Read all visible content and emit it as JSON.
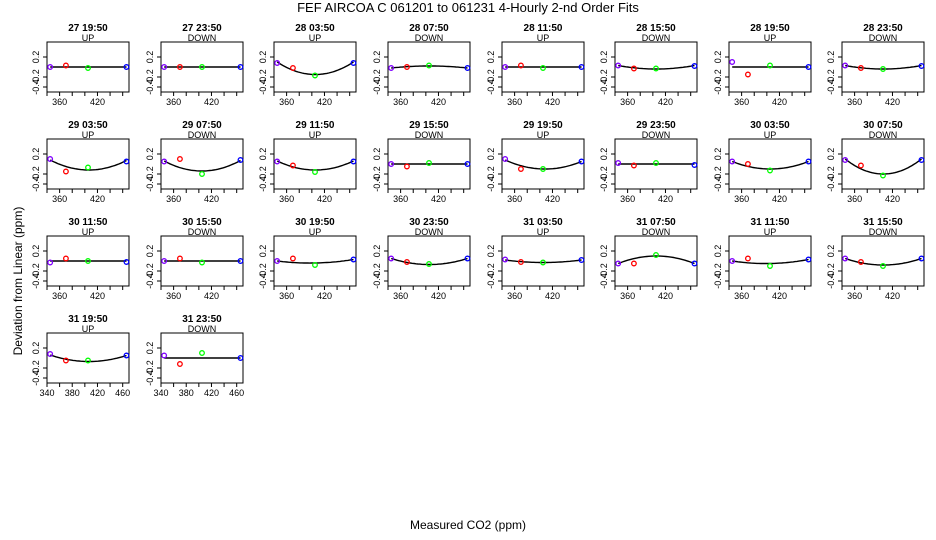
{
  "title": "FEF   AIRCOA C   061201 to 061231   4-Hourly 2-nd Order Fits",
  "xlabel": "Measured CO2 (ppm)",
  "ylabel": "Deviation from Linear (ppm)",
  "colors": {
    "standard_1": "#8000ff",
    "standard_2": "#ff0000",
    "standard_3": "#00ff00",
    "standard_4": "#0000ff",
    "curve": "#000000"
  },
  "chart_data": {
    "type": "scatter",
    "xlim": [
      340,
      470
    ],
    "ylim": [
      -0.5,
      0.5
    ],
    "x_ticks_labeled": [
      360,
      420
    ],
    "x_ticks_labeled_bottom_panels": [
      340,
      380,
      420,
      460
    ],
    "y_ticks": [
      -0.4,
      -0.2,
      0.2
    ],
    "standards_x": [
      345,
      370,
      405,
      466
    ],
    "panels": [
      {
        "label": "27 19:50",
        "direction": "UP",
        "points": [
          0.0,
          0.03,
          -0.02,
          0.0
        ],
        "fit": [
          0.0,
          0.0,
          0.0
        ]
      },
      {
        "label": "27 23:50",
        "direction": "DOWN",
        "points": [
          0.0,
          0.0,
          0.0,
          0.0
        ],
        "fit": [
          0.0,
          0.0,
          0.0
        ]
      },
      {
        "label": "28 03:50",
        "direction": "UP",
        "points": [
          0.08,
          -0.02,
          -0.17,
          0.08
        ],
        "fit": [
          0.1,
          -0.15,
          0.1
        ]
      },
      {
        "label": "28 07:50",
        "direction": "DOWN",
        "points": [
          -0.02,
          0.0,
          0.03,
          -0.02
        ],
        "fit": [
          -0.02,
          0.02,
          -0.02
        ]
      },
      {
        "label": "28 11:50",
        "direction": "UP",
        "points": [
          0.0,
          0.03,
          -0.02,
          0.0
        ],
        "fit": [
          0.0,
          0.0,
          0.0
        ]
      },
      {
        "label": "28 15:50",
        "direction": "DOWN",
        "points": [
          0.03,
          -0.03,
          -0.03,
          0.02
        ],
        "fit": [
          0.03,
          -0.04,
          0.03
        ]
      },
      {
        "label": "28 19:50",
        "direction": "UP",
        "points": [
          0.1,
          -0.15,
          0.03,
          0.0
        ],
        "fit": [
          0.0,
          0.0,
          0.0
        ]
      },
      {
        "label": "28 23:50",
        "direction": "DOWN",
        "points": [
          0.03,
          -0.02,
          -0.04,
          0.02
        ],
        "fit": [
          0.03,
          -0.04,
          0.03
        ]
      },
      {
        "label": "29 03:50",
        "direction": "UP",
        "points": [
          0.1,
          -0.15,
          -0.07,
          0.05
        ],
        "fit": [
          0.08,
          -0.12,
          0.07
        ]
      },
      {
        "label": "29 07:50",
        "direction": "DOWN",
        "points": [
          0.05,
          0.1,
          -0.2,
          0.08
        ],
        "fit": [
          0.06,
          -0.14,
          0.07
        ]
      },
      {
        "label": "29 11:50",
        "direction": "UP",
        "points": [
          0.05,
          -0.03,
          -0.16,
          0.05
        ],
        "fit": [
          0.06,
          -0.12,
          0.06
        ]
      },
      {
        "label": "29 15:50",
        "direction": "DOWN",
        "points": [
          0.0,
          -0.05,
          0.02,
          0.0
        ],
        "fit": [
          0.0,
          0.0,
          0.0
        ]
      },
      {
        "label": "29 19:50",
        "direction": "UP",
        "points": [
          0.1,
          -0.1,
          -0.1,
          0.05
        ],
        "fit": [
          0.08,
          -0.1,
          0.05
        ]
      },
      {
        "label": "29 23:50",
        "direction": "DOWN",
        "points": [
          0.02,
          -0.03,
          0.02,
          -0.02
        ],
        "fit": [
          0.0,
          0.0,
          0.0
        ]
      },
      {
        "label": "30 03:50",
        "direction": "UP",
        "points": [
          0.05,
          0.0,
          -0.13,
          0.05
        ],
        "fit": [
          0.05,
          -0.1,
          0.05
        ]
      },
      {
        "label": "30 07:50",
        "direction": "DOWN",
        "points": [
          0.08,
          -0.03,
          -0.23,
          0.08
        ],
        "fit": [
          0.1,
          -0.2,
          0.1
        ]
      },
      {
        "label": "30 11:50",
        "direction": "UP",
        "points": [
          -0.03,
          0.05,
          0.0,
          -0.02
        ],
        "fit": [
          0.0,
          0.0,
          0.0
        ]
      },
      {
        "label": "30 15:50",
        "direction": "DOWN",
        "points": [
          0.0,
          0.05,
          -0.03,
          0.0
        ],
        "fit": [
          0.0,
          0.0,
          0.0
        ]
      },
      {
        "label": "30 19:50",
        "direction": "UP",
        "points": [
          0.0,
          0.05,
          -0.08,
          0.03
        ],
        "fit": [
          0.0,
          -0.04,
          0.03
        ]
      },
      {
        "label": "30 23:50",
        "direction": "DOWN",
        "points": [
          0.05,
          -0.02,
          -0.06,
          0.05
        ],
        "fit": [
          0.05,
          -0.07,
          0.05
        ]
      },
      {
        "label": "31 03:50",
        "direction": "UP",
        "points": [
          0.03,
          -0.02,
          -0.03,
          0.02
        ],
        "fit": [
          0.02,
          -0.03,
          0.02
        ]
      },
      {
        "label": "31 07:50",
        "direction": "DOWN",
        "points": [
          -0.05,
          -0.05,
          0.12,
          -0.05
        ],
        "fit": [
          -0.05,
          0.1,
          -0.05
        ]
      },
      {
        "label": "31 11:50",
        "direction": "UP",
        "points": [
          0.0,
          0.05,
          -0.1,
          0.03
        ],
        "fit": [
          0.0,
          -0.05,
          0.03
        ]
      },
      {
        "label": "31 15:50",
        "direction": "DOWN",
        "points": [
          0.05,
          -0.02,
          -0.1,
          0.05
        ],
        "fit": [
          0.05,
          -0.08,
          0.05
        ]
      },
      {
        "label": "31 19:50",
        "direction": "UP",
        "points": [
          0.08,
          -0.05,
          -0.05,
          0.05
        ],
        "fit": [
          0.06,
          -0.07,
          0.05
        ]
      },
      {
        "label": "31 23:50",
        "direction": "DOWN",
        "points": [
          0.05,
          -0.12,
          0.1,
          0.0
        ],
        "fit": [
          0.0,
          0.0,
          0.0
        ]
      }
    ]
  }
}
